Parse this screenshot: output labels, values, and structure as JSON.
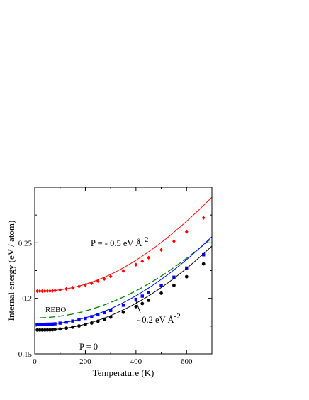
{
  "chart_data": {
    "type": "line",
    "xlabel": "Temperature  (K)",
    "ylabel": "Internal energy  (eV / atom)",
    "xlim": [
      0,
      700
    ],
    "ylim": [
      0.15,
      0.3
    ],
    "xticks": [
      0,
      200,
      400,
      600
    ],
    "yticks": [
      0.15,
      0.2,
      0.25
    ],
    "xtick_labels": [
      "0",
      "200",
      "400",
      "600"
    ],
    "ytick_labels": [
      "0.15",
      "0.2",
      "0.25"
    ],
    "grid": false,
    "series": [
      {
        "key": "p_neg05",
        "color": "#ff0000",
        "marker": "diamond",
        "line": "solid",
        "x": [
          0,
          50,
          100,
          150,
          200,
          250,
          300,
          350,
          400,
          450,
          500,
          550,
          600,
          650,
          700
        ],
        "y": [
          0.2065,
          0.2067,
          0.2077,
          0.2097,
          0.2127,
          0.2167,
          0.2216,
          0.2275,
          0.2343,
          0.2419,
          0.2503,
          0.2595,
          0.2694,
          0.2799,
          0.291
        ],
        "marker_x": [
          10,
          20,
          30,
          40,
          50,
          60,
          70,
          80,
          100,
          125,
          150,
          175,
          200,
          225,
          250,
          275,
          300,
          350,
          400,
          425,
          450,
          500,
          550,
          600,
          667
        ],
        "marker_y": [
          0.2065,
          0.2065,
          0.2065,
          0.2065,
          0.2066,
          0.2066,
          0.2067,
          0.2069,
          0.2076,
          0.2085,
          0.2095,
          0.2107,
          0.212,
          0.2136,
          0.2155,
          0.2175,
          0.2197,
          0.2247,
          0.2303,
          0.2334,
          0.2366,
          0.2436,
          0.2514,
          0.2599,
          0.2725
        ]
      },
      {
        "key": "rebo",
        "color": "#008000",
        "marker": "none",
        "line": "dashed",
        "x": [
          20,
          50,
          100,
          150,
          200,
          250,
          300,
          350,
          400,
          450,
          500,
          550,
          600,
          650,
          700
        ],
        "y": [
          0.1825,
          0.1828,
          0.184,
          0.1859,
          0.1886,
          0.1921,
          0.1963,
          0.2012,
          0.2068,
          0.2131,
          0.2201,
          0.2278,
          0.2361,
          0.2449,
          0.2543
        ]
      },
      {
        "key": "p_neg02",
        "color": "#0000ff",
        "marker": "square",
        "line": "solid",
        "x": [
          0,
          50,
          100,
          150,
          200,
          250,
          300,
          350,
          400,
          450,
          500,
          550,
          600,
          650,
          700
        ],
        "y": [
          0.1767,
          0.1769,
          0.1778,
          0.1797,
          0.1825,
          0.1862,
          0.1907,
          0.1961,
          0.2023,
          0.2093,
          0.2171,
          0.2256,
          0.2349,
          0.2449,
          0.2555
        ],
        "marker_x": [
          10,
          20,
          30,
          40,
          50,
          60,
          70,
          80,
          100,
          125,
          150,
          175,
          200,
          225,
          250,
          275,
          300,
          350,
          400,
          425,
          450,
          500,
          550,
          600,
          667
        ],
        "marker_y": [
          0.1767,
          0.1767,
          0.1767,
          0.1767,
          0.1768,
          0.1768,
          0.1769,
          0.1771,
          0.1777,
          0.1786,
          0.1796,
          0.1807,
          0.1819,
          0.1835,
          0.1852,
          0.1871,
          0.1891,
          0.1938,
          0.1991,
          0.202,
          0.205,
          0.2117,
          0.2191,
          0.2273,
          0.2392
        ]
      },
      {
        "key": "p_0",
        "color": "#000000",
        "marker": "circle",
        "line": "solid",
        "x": [
          0,
          50,
          100,
          150,
          200,
          250,
          300,
          350,
          400,
          450,
          500,
          550,
          600,
          650,
          700
        ],
        "y": [
          0.1715,
          0.1717,
          0.1725,
          0.1742,
          0.1768,
          0.1802,
          0.1845,
          0.1896,
          0.1955,
          0.2022,
          0.2097,
          0.218,
          0.227,
          0.2367,
          0.247
        ],
        "marker_x": [
          10,
          20,
          30,
          40,
          50,
          60,
          70,
          80,
          100,
          125,
          150,
          175,
          200,
          225,
          250,
          275,
          300,
          350,
          400,
          425,
          450,
          500,
          550,
          600,
          667
        ],
        "marker_y": [
          0.1715,
          0.1715,
          0.1715,
          0.1715,
          0.1716,
          0.1716,
          0.1717,
          0.1719,
          0.1724,
          0.1732,
          0.1741,
          0.1752,
          0.1764,
          0.1778,
          0.1794,
          0.1812,
          0.1831,
          0.1875,
          0.1926,
          0.1953,
          0.1982,
          0.2046,
          0.2117,
          0.2195,
          0.231
        ]
      }
    ],
    "annotations": {
      "p_neg05": {
        "prefix": "P = - 0.5  eV Å",
        "exp": "-2"
      },
      "rebo": "REBO",
      "p_neg02": {
        "prefix": "- 0.2  eV Å",
        "exp": "-2"
      },
      "p_0": "P = 0"
    }
  }
}
